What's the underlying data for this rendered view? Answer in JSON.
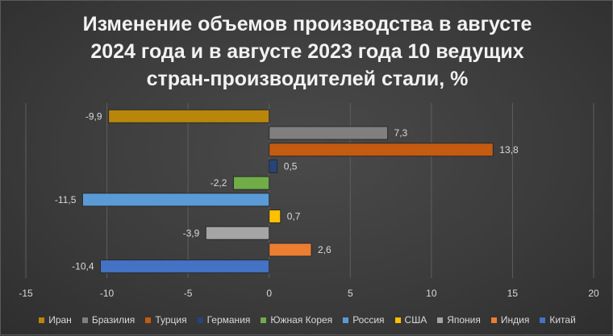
{
  "chart_data": {
    "type": "bar",
    "orientation": "horizontal",
    "title_lines": [
      "Изменение объемов производства в августе",
      "2024 года и в августе 2023 года 10 ведущих",
      "стран-производителей стали, %"
    ],
    "xlim": [
      -15,
      20
    ],
    "xticks": [
      "-15",
      "-10",
      "-5",
      "0",
      "5",
      "10",
      "15",
      "20"
    ],
    "xtick_values": [
      -15,
      -10,
      -5,
      0,
      5,
      10,
      15,
      20
    ],
    "grid": "vertical",
    "legend_position": "bottom",
    "categories": [
      "Иран",
      "Бразилия",
      "Турция",
      "Германия",
      "Южная Корея",
      "Россия",
      "США",
      "Япония",
      "Индия",
      "Китай"
    ],
    "values": [
      -9.9,
      7.3,
      13.8,
      0.5,
      -2.2,
      -11.5,
      0.7,
      -3.9,
      2.6,
      -10.4
    ],
    "value_labels": [
      "-9,9",
      "7,3",
      "13,8",
      "0,5",
      "-2,2",
      "-11,5",
      "0,7",
      "-3,9",
      "2,6",
      "-10,4"
    ],
    "colors": [
      "#b8860b",
      "#7f7f7f",
      "#c55a11",
      "#264478",
      "#70ad47",
      "#5b9bd5",
      "#ffc000",
      "#a5a5a5",
      "#ed7d31",
      "#4472c4"
    ]
  }
}
